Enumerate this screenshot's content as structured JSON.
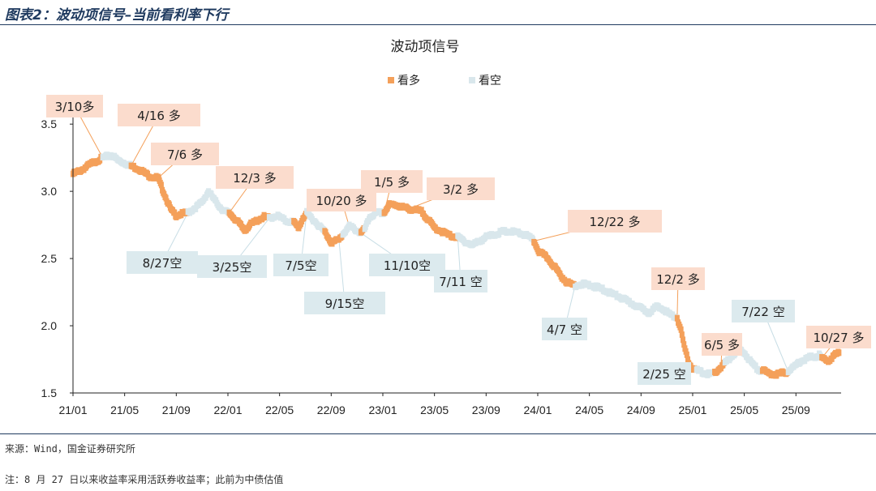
{
  "figure": {
    "title": "图表2：波动项信号–当前看利率下行",
    "source": "来源：Wind，国金证券研究所",
    "note": "注：8 月 27 日以来收益率采用活跃券收益率；此前为中债估值"
  },
  "colors": {
    "bull": "#f4a05a",
    "bear": "#d9e7ec",
    "bull_label_bg": "#fbdccd",
    "bear_label_bg": "#dceaee",
    "axis": "#222222",
    "leader": "#f4a05a"
  },
  "chart_data": {
    "type": "scatter",
    "title": "波动项信号",
    "xlabel": "",
    "ylabel": "",
    "x_ticks": [
      "21/01",
      "21/05",
      "21/09",
      "22/01",
      "22/05",
      "22/09",
      "23/01",
      "23/05",
      "23/09",
      "24/01",
      "24/05",
      "24/09",
      "25/01",
      "25/05",
      "25/09"
    ],
    "x_tick_months": [
      0,
      4,
      8,
      12,
      16,
      20,
      24,
      28,
      32,
      36,
      40,
      44,
      48,
      52,
      56
    ],
    "x_range_months": [
      0,
      59.5
    ],
    "y_ticks": [
      "1.5",
      "2.0",
      "2.5",
      "3.0",
      "3.5"
    ],
    "ylim": [
      1.5,
      3.7
    ],
    "legend": {
      "position": "top-center",
      "entries": [
        "看多",
        "看空"
      ]
    },
    "series": [
      {
        "name": "看多",
        "color": "#f4a05a",
        "points": [
          [
            0.0,
            3.13
          ],
          [
            0.7,
            3.16
          ],
          [
            1.3,
            3.2
          ],
          [
            2.3,
            3.25
          ]
        ]
      },
      {
        "name": "看空",
        "color": "#d9e7ec",
        "points": [
          [
            2.3,
            3.25
          ],
          [
            3.0,
            3.27
          ],
          [
            3.5,
            3.23
          ],
          [
            4.0,
            3.21
          ],
          [
            4.5,
            3.19
          ]
        ]
      },
      {
        "name": "看多",
        "color": "#f4a05a",
        "points": [
          [
            4.5,
            3.19
          ],
          [
            5.2,
            3.16
          ],
          [
            6.0,
            3.11
          ],
          [
            6.6,
            3.1
          ],
          [
            6.7,
            3.07
          ],
          [
            7.2,
            2.95
          ],
          [
            7.6,
            2.86
          ],
          [
            8.0,
            2.82
          ],
          [
            8.3,
            2.83
          ],
          [
            8.9,
            2.84
          ]
        ]
      },
      {
        "name": "看空",
        "color": "#d9e7ec",
        "points": [
          [
            8.9,
            2.84
          ],
          [
            9.5,
            2.88
          ],
          [
            10.0,
            2.92
          ],
          [
            10.5,
            3.0
          ],
          [
            11.0,
            2.93
          ],
          [
            11.5,
            2.87
          ],
          [
            12.0,
            2.84
          ],
          [
            12.1,
            2.84
          ]
        ]
      },
      {
        "name": "看多",
        "color": "#f4a05a",
        "points": [
          [
            12.1,
            2.84
          ],
          [
            12.8,
            2.77
          ],
          [
            13.3,
            2.71
          ],
          [
            13.7,
            2.75
          ],
          [
            14.2,
            2.78
          ],
          [
            14.8,
            2.81
          ],
          [
            15.2,
            2.8
          ]
        ]
      },
      {
        "name": "看空",
        "color": "#d9e7ec",
        "points": [
          [
            15.2,
            2.8
          ],
          [
            15.8,
            2.82
          ],
          [
            16.5,
            2.78
          ],
          [
            17.1,
            2.77
          ]
        ]
      },
      {
        "name": "看多",
        "color": "#f4a05a",
        "points": [
          [
            17.1,
            2.77
          ],
          [
            17.5,
            2.73
          ],
          [
            17.8,
            2.8
          ],
          [
            18.1,
            2.84
          ]
        ]
      },
      {
        "name": "看空",
        "color": "#d9e7ec",
        "points": [
          [
            18.1,
            2.84
          ],
          [
            18.6,
            2.79
          ],
          [
            19.2,
            2.73
          ],
          [
            19.5,
            2.7
          ]
        ]
      },
      {
        "name": "看多",
        "color": "#f4a05a",
        "points": [
          [
            19.5,
            2.7
          ],
          [
            20.0,
            2.62
          ],
          [
            20.6,
            2.64
          ],
          [
            20.9,
            2.68
          ]
        ]
      },
      {
        "name": "看空",
        "color": "#d9e7ec",
        "points": [
          [
            20.9,
            2.68
          ],
          [
            21.4,
            2.74
          ],
          [
            21.8,
            2.72
          ],
          [
            22.3,
            2.69
          ]
        ]
      },
      {
        "name": "看多",
        "color": "#f4a05a",
        "points": [
          [
            22.3,
            2.69
          ],
          [
            22.6,
            2.72
          ]
        ]
      },
      {
        "name": "看空",
        "color": "#d9e7ec",
        "points": [
          [
            22.6,
            2.72
          ],
          [
            23.0,
            2.81
          ],
          [
            23.6,
            2.84
          ],
          [
            24.1,
            2.84
          ]
        ]
      },
      {
        "name": "看多",
        "color": "#f4a05a",
        "points": [
          [
            24.1,
            2.84
          ],
          [
            24.5,
            2.9
          ],
          [
            25.0,
            2.9
          ],
          [
            25.6,
            2.88
          ],
          [
            26.0,
            2.87
          ],
          [
            26.6,
            2.86
          ],
          [
            27.0,
            2.85
          ],
          [
            27.5,
            2.79
          ],
          [
            28.0,
            2.73
          ],
          [
            28.6,
            2.7
          ],
          [
            29.2,
            2.67
          ],
          [
            29.8,
            2.66
          ]
        ]
      },
      {
        "name": "看空",
        "color": "#d9e7ec",
        "points": [
          [
            29.8,
            2.66
          ],
          [
            30.3,
            2.63
          ],
          [
            30.9,
            2.6
          ],
          [
            31.5,
            2.63
          ],
          [
            32.0,
            2.66
          ],
          [
            32.7,
            2.68
          ],
          [
            33.3,
            2.7
          ],
          [
            34.0,
            2.7
          ],
          [
            34.5,
            2.69
          ],
          [
            35.2,
            2.67
          ],
          [
            35.7,
            2.63
          ]
        ]
      },
      {
        "name": "看多",
        "color": "#f4a05a",
        "points": [
          [
            35.7,
            2.63
          ],
          [
            36.1,
            2.55
          ],
          [
            36.7,
            2.51
          ],
          [
            37.3,
            2.44
          ],
          [
            37.8,
            2.37
          ],
          [
            38.3,
            2.32
          ],
          [
            38.9,
            2.3
          ]
        ]
      },
      {
        "name": "看空",
        "color": "#d9e7ec",
        "points": [
          [
            38.9,
            2.3
          ],
          [
            39.5,
            2.31
          ],
          [
            40.1,
            2.3
          ],
          [
            40.8,
            2.28
          ],
          [
            41.5,
            2.25
          ],
          [
            42.2,
            2.22
          ],
          [
            42.8,
            2.19
          ],
          [
            43.4,
            2.16
          ],
          [
            44.0,
            2.13
          ],
          [
            44.6,
            2.1
          ],
          [
            45.2,
            2.14
          ],
          [
            45.8,
            2.12
          ],
          [
            46.3,
            2.08
          ],
          [
            46.8,
            2.06
          ]
        ]
      },
      {
        "name": "看多",
        "color": "#f4a05a",
        "points": [
          [
            46.8,
            2.06
          ],
          [
            47.1,
            1.96
          ],
          [
            47.4,
            1.82
          ],
          [
            47.7,
            1.73
          ],
          [
            48.0,
            1.68
          ],
          [
            48.3,
            1.67
          ]
        ]
      },
      {
        "name": "看空",
        "color": "#d9e7ec",
        "points": [
          [
            48.3,
            1.67
          ],
          [
            48.8,
            1.65
          ],
          [
            49.3,
            1.64
          ],
          [
            49.7,
            1.65
          ]
        ]
      },
      {
        "name": "看多",
        "color": "#f4a05a",
        "points": [
          [
            49.7,
            1.65
          ],
          [
            50.2,
            1.69
          ],
          [
            50.5,
            1.72
          ]
        ]
      },
      {
        "name": "看空",
        "color": "#d9e7ec",
        "points": [
          [
            50.5,
            1.72
          ],
          [
            51.0,
            1.77
          ],
          [
            51.5,
            1.82
          ],
          [
            52.0,
            1.8
          ],
          [
            52.6,
            1.72
          ],
          [
            53.1,
            1.67
          ],
          [
            53.4,
            1.67
          ]
        ]
      },
      {
        "name": "看多",
        "color": "#f4a05a",
        "points": [
          [
            53.4,
            1.67
          ],
          [
            54.0,
            1.64
          ],
          [
            54.5,
            1.64
          ],
          [
            55.1,
            1.65
          ],
          [
            55.4,
            1.66
          ]
        ]
      },
      {
        "name": "看空",
        "color": "#d9e7ec",
        "points": [
          [
            55.4,
            1.66
          ],
          [
            55.9,
            1.7
          ],
          [
            56.4,
            1.74
          ],
          [
            56.9,
            1.76
          ],
          [
            57.4,
            1.77
          ],
          [
            57.8,
            1.78
          ],
          [
            58.0,
            1.76
          ]
        ]
      },
      {
        "name": "看多",
        "color": "#f4a05a",
        "points": [
          [
            58.0,
            1.76
          ],
          [
            58.5,
            1.74
          ],
          [
            59.0,
            1.78
          ],
          [
            59.4,
            1.81
          ]
        ]
      }
    ],
    "annotations": [
      {
        "text": "3/10多",
        "kind": "bull",
        "x": 2.3,
        "y": 3.25
      },
      {
        "text": "4/16 多",
        "kind": "bull",
        "x": 4.5,
        "y": 3.19
      },
      {
        "text": "7/6 多",
        "kind": "bull",
        "x": 6.6,
        "y": 3.1
      },
      {
        "text": "8/27空",
        "kind": "bear",
        "x": 8.9,
        "y": 2.84
      },
      {
        "text": "12/3 多",
        "kind": "bull",
        "x": 12.1,
        "y": 2.84
      },
      {
        "text": "3/25空",
        "kind": "bear",
        "x": 15.2,
        "y": 2.8
      },
      {
        "text": "7/5空",
        "kind": "bear",
        "x": 18.1,
        "y": 2.84
      },
      {
        "text": "9/15空",
        "kind": "bear",
        "x": 20.6,
        "y": 2.64
      },
      {
        "text": "10/20 多",
        "kind": "bull",
        "x": 21.4,
        "y": 2.74
      },
      {
        "text": "11/10空",
        "kind": "bear",
        "x": 22.3,
        "y": 2.69
      },
      {
        "text": "1/5 多",
        "kind": "bull",
        "x": 24.1,
        "y": 2.84
      },
      {
        "text": "3/2 多",
        "kind": "bull",
        "x": 26.0,
        "y": 2.87
      },
      {
        "text": "7/11 空",
        "kind": "bear",
        "x": 29.8,
        "y": 2.66
      },
      {
        "text": "12/22 多",
        "kind": "bull",
        "x": 35.7,
        "y": 2.63
      },
      {
        "text": "4/7 空",
        "kind": "bear",
        "x": 38.9,
        "y": 2.3
      },
      {
        "text": "12/2 多",
        "kind": "bull",
        "x": 46.8,
        "y": 2.06
      },
      {
        "text": "2/25 空",
        "kind": "bear",
        "x": 48.3,
        "y": 1.67
      },
      {
        "text": "6/5 多",
        "kind": "bull",
        "x": 50.2,
        "y": 1.69
      },
      {
        "text": "7/22 空",
        "kind": "bear",
        "x": 55.4,
        "y": 1.66
      },
      {
        "text": "10/27 多",
        "kind": "bull",
        "x": 58.0,
        "y": 1.76
      }
    ]
  }
}
